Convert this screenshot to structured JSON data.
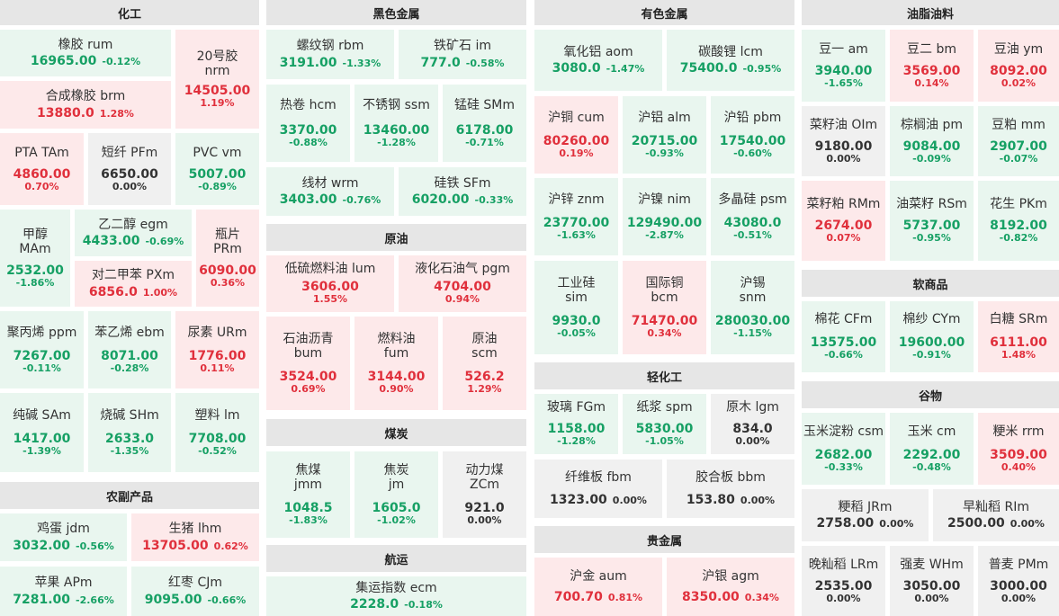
{
  "sections": {
    "chem": "化工",
    "ferrous": "黑色金属",
    "nonferrous": "有色金属",
    "oils": "油脂油料",
    "agri": "农副产品",
    "crude": "原油",
    "coal": "煤炭",
    "shipping": "航运",
    "light": "轻化工",
    "precious": "贵金属",
    "soft": "软商品",
    "grain": "谷物"
  },
  "cells": {
    "rum": {
      "name": "橡胶  rum",
      "value": "16965.00",
      "pct": "-0.12%"
    },
    "nrm": {
      "name1": "20号胶",
      "name2": "nrm",
      "value": "14505.00",
      "pct": "1.19%"
    },
    "brm": {
      "name": "合成橡胶  brm",
      "value": "13880.0",
      "pct": "1.28%"
    },
    "tam": {
      "name": "PTA  TAm",
      "value": "4860.00",
      "pct": "0.70%"
    },
    "pfm": {
      "name": "短纤  PFm",
      "value": "6650.00",
      "pct": "0.00%"
    },
    "vm": {
      "name": "PVC  vm",
      "value": "5007.00",
      "pct": "-0.89%"
    },
    "mam": {
      "name1": "甲醇",
      "name2": "MAm",
      "value": "2532.00",
      "pct": "-1.86%"
    },
    "egm": {
      "name": "乙二醇  egm",
      "value": "4433.00",
      "pct": "-0.69%"
    },
    "prm": {
      "name1": "瓶片",
      "name2": "PRm",
      "value": "6090.00",
      "pct": "0.36%"
    },
    "pxm": {
      "name": "对二甲苯  PXm",
      "value": "6856.0",
      "pct": "1.00%"
    },
    "ppm": {
      "name": "聚丙烯  ppm",
      "value": "7267.00",
      "pct": "-0.11%"
    },
    "ebm": {
      "name": "苯乙烯  ebm",
      "value": "8071.00",
      "pct": "-0.28%"
    },
    "urm": {
      "name": "尿素  URm",
      "value": "1776.00",
      "pct": "0.11%"
    },
    "sam": {
      "name": "纯碱  SAm",
      "value": "1417.00",
      "pct": "-1.39%"
    },
    "shm": {
      "name": "烧碱  SHm",
      "value": "2633.0",
      "pct": "-1.35%"
    },
    "lm": {
      "name": "塑料  lm",
      "value": "7708.00",
      "pct": "-0.52%"
    },
    "jdm": {
      "name": "鸡蛋  jdm",
      "value": "3032.00",
      "pct": "-0.56%"
    },
    "lhm": {
      "name": "生猪  lhm",
      "value": "13705.00",
      "pct": "0.62%"
    },
    "apm": {
      "name": "苹果  APm",
      "value": "7281.00",
      "pct": "-2.66%"
    },
    "cjm": {
      "name": "红枣  CJm",
      "value": "9095.00",
      "pct": "-0.66%"
    },
    "rbm": {
      "name": "螺纹钢  rbm",
      "value": "3191.00",
      "pct": "-1.33%"
    },
    "im": {
      "name": "铁矿石  im",
      "value": "777.0",
      "pct": "-0.58%"
    },
    "hcm": {
      "name": "热卷  hcm",
      "value": "3370.00",
      "pct": "-0.88%"
    },
    "ssm": {
      "name": "不锈钢  ssm",
      "value": "13460.00",
      "pct": "-1.28%"
    },
    "smm": {
      "name": "锰硅  SMm",
      "value": "6178.00",
      "pct": "-0.71%"
    },
    "wrm": {
      "name": "线材  wrm",
      "value": "3403.00",
      "pct": "-0.76%"
    },
    "sfm": {
      "name": "硅铁  SFm",
      "value": "6020.00",
      "pct": "-0.33%"
    },
    "lum": {
      "name": "低硫燃料油  lum",
      "value": "3606.00",
      "pct": "1.55%"
    },
    "pgm": {
      "name": "液化石油气  pgm",
      "value": "4704.00",
      "pct": "0.94%"
    },
    "bum": {
      "name1": "石油沥青",
      "name2": "bum",
      "value": "3524.00",
      "pct": "0.69%"
    },
    "fum": {
      "name1": "燃料油",
      "name2": "fum",
      "value": "3144.00",
      "pct": "0.90%"
    },
    "scm": {
      "name1": "原油",
      "name2": "scm",
      "value": "526.2",
      "pct": "1.29%"
    },
    "jmm": {
      "name1": "焦煤",
      "name2": "jmm",
      "value": "1048.5",
      "pct": "-1.83%"
    },
    "jm": {
      "name1": "焦炭",
      "name2": "jm",
      "value": "1605.0",
      "pct": "-1.02%"
    },
    "zcm": {
      "name1": "动力煤",
      "name2": "ZCm",
      "value": "921.0",
      "pct": "0.00%"
    },
    "ecm": {
      "name": "集运指数  ecm",
      "value": "2228.0",
      "pct": "-0.18%"
    },
    "aom": {
      "name": "氧化铝  aom",
      "value": "3080.0",
      "pct": "-1.47%"
    },
    "lcm": {
      "name": "碳酸锂  lcm",
      "value": "75400.0",
      "pct": "-0.95%"
    },
    "cum": {
      "name": "沪铜  cum",
      "value": "80260.00",
      "pct": "0.19%"
    },
    "alm": {
      "name": "沪铝  alm",
      "value": "20715.00",
      "pct": "-0.93%"
    },
    "pbm": {
      "name": "沪铅  pbm",
      "value": "17540.00",
      "pct": "-0.60%"
    },
    "znm": {
      "name": "沪锌  znm",
      "value": "23770.00",
      "pct": "-1.63%"
    },
    "nim": {
      "name": "沪镍  nim",
      "value": "129490.00",
      "pct": "-2.87%"
    },
    "psm": {
      "name": "多晶硅  psm",
      "value": "43080.0",
      "pct": "-0.51%"
    },
    "sim": {
      "name1": "工业硅",
      "name2": "sim",
      "value": "9930.0",
      "pct": "-0.05%"
    },
    "bcm": {
      "name1": "国际铜",
      "name2": "bcm",
      "value": "71470.00",
      "pct": "0.34%"
    },
    "snm": {
      "name1": "沪锡",
      "name2": "snm",
      "value": "280030.00",
      "pct": "-1.15%"
    },
    "fgm": {
      "name": "玻璃  FGm",
      "value": "1158.00",
      "pct": "-1.28%"
    },
    "spm": {
      "name": "纸浆  spm",
      "value": "5830.00",
      "pct": "-1.05%"
    },
    "lgm": {
      "name": "原木  lgm",
      "value": "834.0",
      "pct": "0.00%"
    },
    "fbm": {
      "name": "纤维板  fbm",
      "value": "1323.00",
      "pct": "0.00%"
    },
    "bbm": {
      "name": "胶合板  bbm",
      "value": "153.80",
      "pct": "0.00%"
    },
    "aum": {
      "name": "沪金  aum",
      "value": "700.70",
      "pct": "0.81%"
    },
    "agm": {
      "name": "沪银  agm",
      "value": "8350.00",
      "pct": "0.34%"
    },
    "am": {
      "name": "豆一  am",
      "value": "3940.00",
      "pct": "-1.65%"
    },
    "bm": {
      "name": "豆二  bm",
      "value": "3569.00",
      "pct": "0.14%"
    },
    "ym": {
      "name": "豆油  ym",
      "value": "8092.00",
      "pct": "0.02%"
    },
    "olm": {
      "name": "菜籽油  OIm",
      "value": "9180.00",
      "pct": "0.00%"
    },
    "pm": {
      "name": "棕榈油  pm",
      "value": "9084.00",
      "pct": "-0.09%"
    },
    "mm": {
      "name": "豆粕  mm",
      "value": "2907.00",
      "pct": "-0.07%"
    },
    "rmm": {
      "name": "菜籽粕  RMm",
      "value": "2674.00",
      "pct": "0.07%"
    },
    "rsm": {
      "name": "油菜籽  RSm",
      "value": "5737.00",
      "pct": "-0.95%"
    },
    "pkm": {
      "name": "花生  PKm",
      "value": "8192.00",
      "pct": "-0.82%"
    },
    "cfm": {
      "name": "棉花  CFm",
      "value": "13575.00",
      "pct": "-0.66%"
    },
    "cym": {
      "name": "棉纱  CYm",
      "value": "19600.00",
      "pct": "-0.91%"
    },
    "srm": {
      "name": "白糖  SRm",
      "value": "6111.00",
      "pct": "1.48%"
    },
    "csm": {
      "name": "玉米淀粉  csm",
      "value": "2682.00",
      "pct": "-0.33%"
    },
    "cm": {
      "name": "玉米  cm",
      "value": "2292.00",
      "pct": "-0.48%"
    },
    "rrm": {
      "name": "粳米  rrm",
      "value": "3509.00",
      "pct": "0.40%"
    },
    "jrm": {
      "name": "粳稻  JRm",
      "value": "2758.00",
      "pct": "0.00%"
    },
    "rim": {
      "name": "早籼稻  RIm",
      "value": "2500.00",
      "pct": "0.00%"
    },
    "lrm": {
      "name": "晚籼稻  LRm",
      "value": "2535.00",
      "pct": "0.00%"
    },
    "whm": {
      "name": "强麦  WHm",
      "value": "3050.00",
      "pct": "0.00%"
    },
    "pmm": {
      "name": "普麦  PMm",
      "value": "3000.00",
      "pct": "0.00%"
    }
  }
}
